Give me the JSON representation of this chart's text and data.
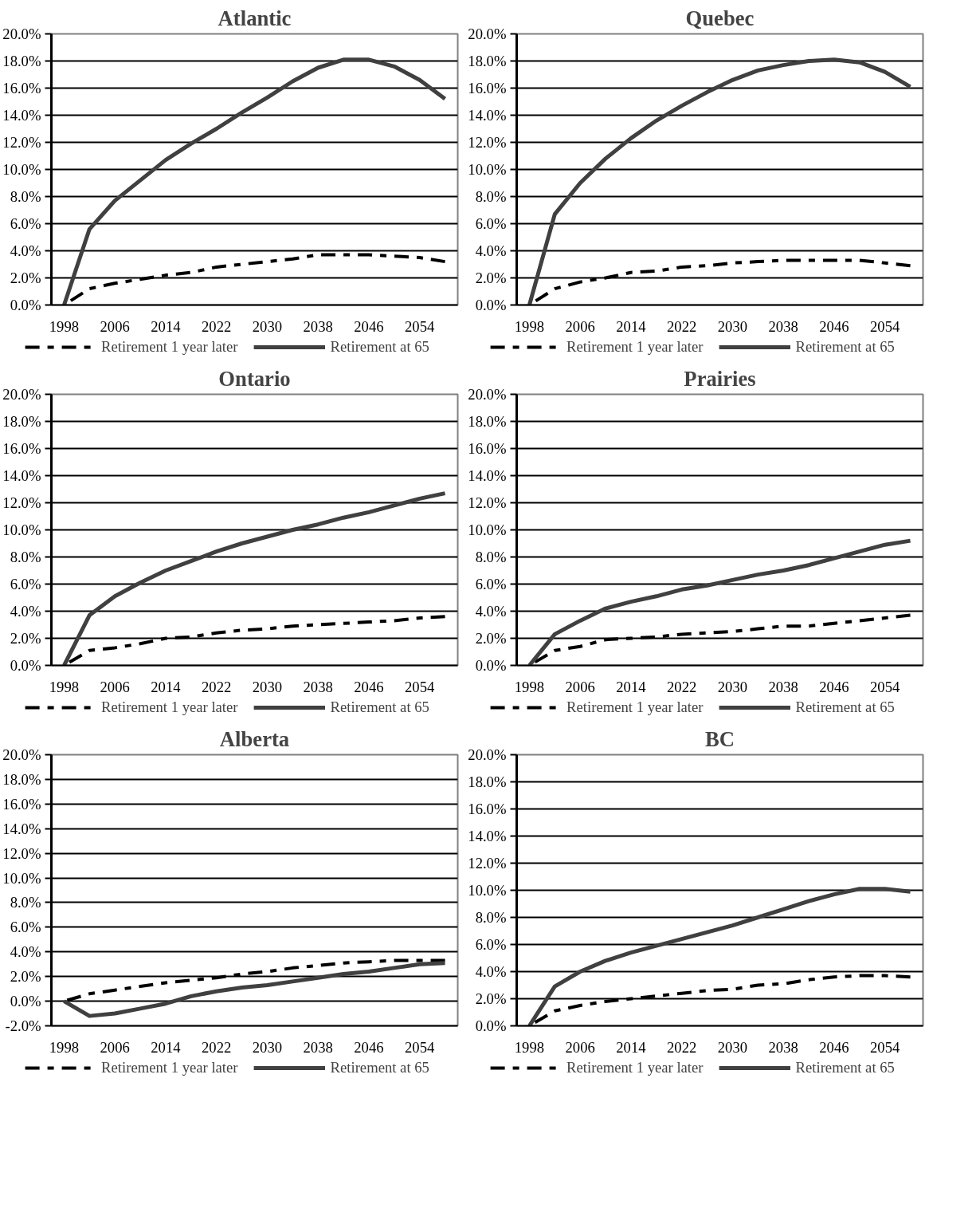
{
  "chart_data": [
    {
      "type": "line",
      "title": "Atlantic",
      "categories": [
        "1998",
        null,
        "2006",
        null,
        "2014",
        null,
        "2022",
        null,
        "2030",
        null,
        "2038",
        null,
        "2046",
        null,
        "2054",
        null
      ],
      "ylim": [
        0,
        20
      ],
      "yticks": [
        {
          "value": 0,
          "label": "0.0%"
        },
        {
          "value": 2,
          "label": "2.0%"
        },
        {
          "value": 4,
          "label": "4.0%"
        },
        {
          "value": 6,
          "label": "6.0%"
        },
        {
          "value": 8,
          "label": "8.0%"
        },
        {
          "value": 10,
          "label": "10.0%"
        },
        {
          "value": 12,
          "label": "12.0%"
        },
        {
          "value": 14,
          "label": "14.0%"
        },
        {
          "value": 16,
          "label": "16.0%"
        },
        {
          "value": 18,
          "label": "18.0%"
        },
        {
          "value": 20,
          "label": "20.0%"
        }
      ],
      "grid": "y",
      "legend": "bottom",
      "series": [
        {
          "name": "Retirement 1 year later",
          "color": "#000000",
          "line_style": "dashed",
          "values": [
            0,
            1.2,
            1.6,
            1.9,
            2.2,
            2.4,
            2.8,
            3.0,
            3.2,
            3.4,
            3.7,
            3.7,
            3.7,
            3.6,
            3.5,
            3.2
          ]
        },
        {
          "name": "Retirement at 65",
          "color": "#404040",
          "line_style": "solid",
          "values": [
            0,
            5.6,
            7.7,
            9.2,
            10.7,
            11.9,
            13.0,
            14.2,
            15.3,
            16.5,
            17.5,
            18.1,
            18.1,
            17.6,
            16.6,
            15.2
          ]
        }
      ]
    },
    {
      "type": "line",
      "title": "Quebec",
      "categories": [
        "1998",
        null,
        "2006",
        null,
        "2014",
        null,
        "2022",
        null,
        "2030",
        null,
        "2038",
        null,
        "2046",
        null,
        "2054",
        null
      ],
      "ylim": [
        0,
        20
      ],
      "yticks": [
        {
          "value": 0,
          "label": "0.0%"
        },
        {
          "value": 2,
          "label": "2.0%"
        },
        {
          "value": 4,
          "label": "4.0%"
        },
        {
          "value": 6,
          "label": "6.0%"
        },
        {
          "value": 8,
          "label": "8.0%"
        },
        {
          "value": 10,
          "label": "10.0%"
        },
        {
          "value": 12,
          "label": "12.0%"
        },
        {
          "value": 14,
          "label": "14.0%"
        },
        {
          "value": 16,
          "label": "16.0%"
        },
        {
          "value": 18,
          "label": "18.0%"
        },
        {
          "value": 20,
          "label": "20.0%"
        }
      ],
      "grid": "y",
      "legend": "bottom",
      "series": [
        {
          "name": "Retirement 1 year later",
          "color": "#000000",
          "line_style": "dashed",
          "values": [
            0,
            1.2,
            1.7,
            2.0,
            2.4,
            2.5,
            2.8,
            2.9,
            3.1,
            3.2,
            3.3,
            3.3,
            3.3,
            3.3,
            3.1,
            2.9
          ]
        },
        {
          "name": "Retirement at 65",
          "color": "#404040",
          "line_style": "solid",
          "values": [
            0,
            6.7,
            9.0,
            10.8,
            12.3,
            13.6,
            14.7,
            15.7,
            16.6,
            17.3,
            17.7,
            18.0,
            18.1,
            17.9,
            17.2,
            16.1
          ]
        }
      ]
    },
    {
      "type": "line",
      "title": "Ontario",
      "categories": [
        "1998",
        null,
        "2006",
        null,
        "2014",
        null,
        "2022",
        null,
        "2030",
        null,
        "2038",
        null,
        "2046",
        null,
        "2054",
        null
      ],
      "ylim": [
        0,
        20
      ],
      "yticks": [
        {
          "value": 0,
          "label": "0.0%"
        },
        {
          "value": 2,
          "label": "2.0%"
        },
        {
          "value": 4,
          "label": "4.0%"
        },
        {
          "value": 6,
          "label": "6.0%"
        },
        {
          "value": 8,
          "label": "8.0%"
        },
        {
          "value": 10,
          "label": "10.0%"
        },
        {
          "value": 12,
          "label": "12.0%"
        },
        {
          "value": 14,
          "label": "14.0%"
        },
        {
          "value": 16,
          "label": "16.0%"
        },
        {
          "value": 18,
          "label": "18.0%"
        },
        {
          "value": 20,
          "label": "20.0%"
        }
      ],
      "grid": "y",
      "legend": "bottom",
      "series": [
        {
          "name": "Retirement 1 year later",
          "color": "#000000",
          "line_style": "dashed",
          "values": [
            0,
            1.1,
            1.3,
            1.6,
            2.0,
            2.1,
            2.4,
            2.6,
            2.7,
            2.9,
            3.0,
            3.1,
            3.2,
            3.3,
            3.5,
            3.6
          ]
        },
        {
          "name": "Retirement at 65",
          "color": "#404040",
          "line_style": "solid",
          "values": [
            0,
            3.7,
            5.1,
            6.1,
            7.0,
            7.7,
            8.4,
            9.0,
            9.5,
            10.0,
            10.4,
            10.9,
            11.3,
            11.8,
            12.3,
            12.7
          ]
        }
      ]
    },
    {
      "type": "line",
      "title": "Prairies",
      "categories": [
        "1998",
        null,
        "2006",
        null,
        "2014",
        null,
        "2022",
        null,
        "2030",
        null,
        "2038",
        null,
        "2046",
        null,
        "2054",
        null
      ],
      "ylim": [
        0,
        20
      ],
      "yticks": [
        {
          "value": 0,
          "label": "0.0%"
        },
        {
          "value": 2,
          "label": "2.0%"
        },
        {
          "value": 4,
          "label": "4.0%"
        },
        {
          "value": 6,
          "label": "6.0%"
        },
        {
          "value": 8,
          "label": "8.0%"
        },
        {
          "value": 10,
          "label": "10.0%"
        },
        {
          "value": 12,
          "label": "12.0%"
        },
        {
          "value": 14,
          "label": "14.0%"
        },
        {
          "value": 16,
          "label": "16.0%"
        },
        {
          "value": 18,
          "label": "18.0%"
        },
        {
          "value": 20,
          "label": "20.0%"
        }
      ],
      "grid": "y",
      "legend": "bottom",
      "series": [
        {
          "name": "Retirement 1 year later",
          "color": "#000000",
          "line_style": "dashed",
          "values": [
            0,
            1.1,
            1.4,
            1.9,
            2.0,
            2.1,
            2.3,
            2.4,
            2.5,
            2.7,
            2.9,
            2.9,
            3.1,
            3.3,
            3.5,
            3.7
          ]
        },
        {
          "name": "Retirement at 65",
          "color": "#404040",
          "line_style": "solid",
          "values": [
            0,
            2.3,
            3.3,
            4.2,
            4.7,
            5.1,
            5.6,
            5.9,
            6.3,
            6.7,
            7.0,
            7.4,
            7.9,
            8.4,
            8.9,
            9.2
          ]
        }
      ]
    },
    {
      "type": "line",
      "title": "Alberta",
      "categories": [
        "1998",
        null,
        "2006",
        null,
        "2014",
        null,
        "2022",
        null,
        "2030",
        null,
        "2038",
        null,
        "2046",
        null,
        "2054",
        null
      ],
      "ylim": [
        -2,
        20
      ],
      "yticks": [
        {
          "value": -2,
          "label": "-2.0%"
        },
        {
          "value": 0,
          "label": "0.0%"
        },
        {
          "value": 2,
          "label": "2.0%"
        },
        {
          "value": 4,
          "label": "4.0%"
        },
        {
          "value": 6,
          "label": "6.0%"
        },
        {
          "value": 8,
          "label": "8.0%"
        },
        {
          "value": 10,
          "label": "10.0%"
        },
        {
          "value": 12,
          "label": "12.0%"
        },
        {
          "value": 14,
          "label": "14.0%"
        },
        {
          "value": 16,
          "label": "16.0%"
        },
        {
          "value": 18,
          "label": "18.0%"
        },
        {
          "value": 20,
          "label": "20.0%"
        }
      ],
      "grid": "y",
      "legend": "bottom",
      "series": [
        {
          "name": "Retirement 1 year later",
          "color": "#000000",
          "line_style": "dashed",
          "values": [
            0,
            0.6,
            0.9,
            1.2,
            1.5,
            1.7,
            1.9,
            2.2,
            2.4,
            2.7,
            2.9,
            3.1,
            3.2,
            3.3,
            3.3,
            3.3
          ]
        },
        {
          "name": "Retirement at 65",
          "color": "#404040",
          "line_style": "solid",
          "values": [
            0,
            -1.2,
            -1.0,
            -0.6,
            -0.2,
            0.4,
            0.8,
            1.1,
            1.3,
            1.6,
            1.9,
            2.2,
            2.4,
            2.7,
            3.0,
            3.1
          ]
        }
      ]
    },
    {
      "type": "line",
      "title": "BC",
      "categories": [
        "1998",
        null,
        "2006",
        null,
        "2014",
        null,
        "2022",
        null,
        "2030",
        null,
        "2038",
        null,
        "2046",
        null,
        "2054",
        null
      ],
      "ylim": [
        0,
        20
      ],
      "yticks": [
        {
          "value": 0,
          "label": "0.0%"
        },
        {
          "value": 2,
          "label": "2.0%"
        },
        {
          "value": 4,
          "label": "4.0%"
        },
        {
          "value": 6,
          "label": "6.0%"
        },
        {
          "value": 8,
          "label": "8.0%"
        },
        {
          "value": 10,
          "label": "10.0%"
        },
        {
          "value": 12,
          "label": "12.0%"
        },
        {
          "value": 14,
          "label": "14.0%"
        },
        {
          "value": 16,
          "label": "16.0%"
        },
        {
          "value": 18,
          "label": "18.0%"
        },
        {
          "value": 20,
          "label": "20.0%"
        }
      ],
      "grid": "y",
      "legend": "bottom",
      "series": [
        {
          "name": "Retirement 1 year later",
          "color": "#000000",
          "line_style": "dashed",
          "values": [
            0,
            1.1,
            1.5,
            1.8,
            2.0,
            2.2,
            2.4,
            2.6,
            2.7,
            3.0,
            3.1,
            3.4,
            3.6,
            3.7,
            3.7,
            3.6
          ]
        },
        {
          "name": "Retirement at 65",
          "color": "#404040",
          "line_style": "solid",
          "values": [
            0,
            2.9,
            4.0,
            4.8,
            5.4,
            5.9,
            6.4,
            6.9,
            7.4,
            8.0,
            8.6,
            9.2,
            9.7,
            10.1,
            10.1,
            9.9
          ]
        }
      ]
    }
  ]
}
